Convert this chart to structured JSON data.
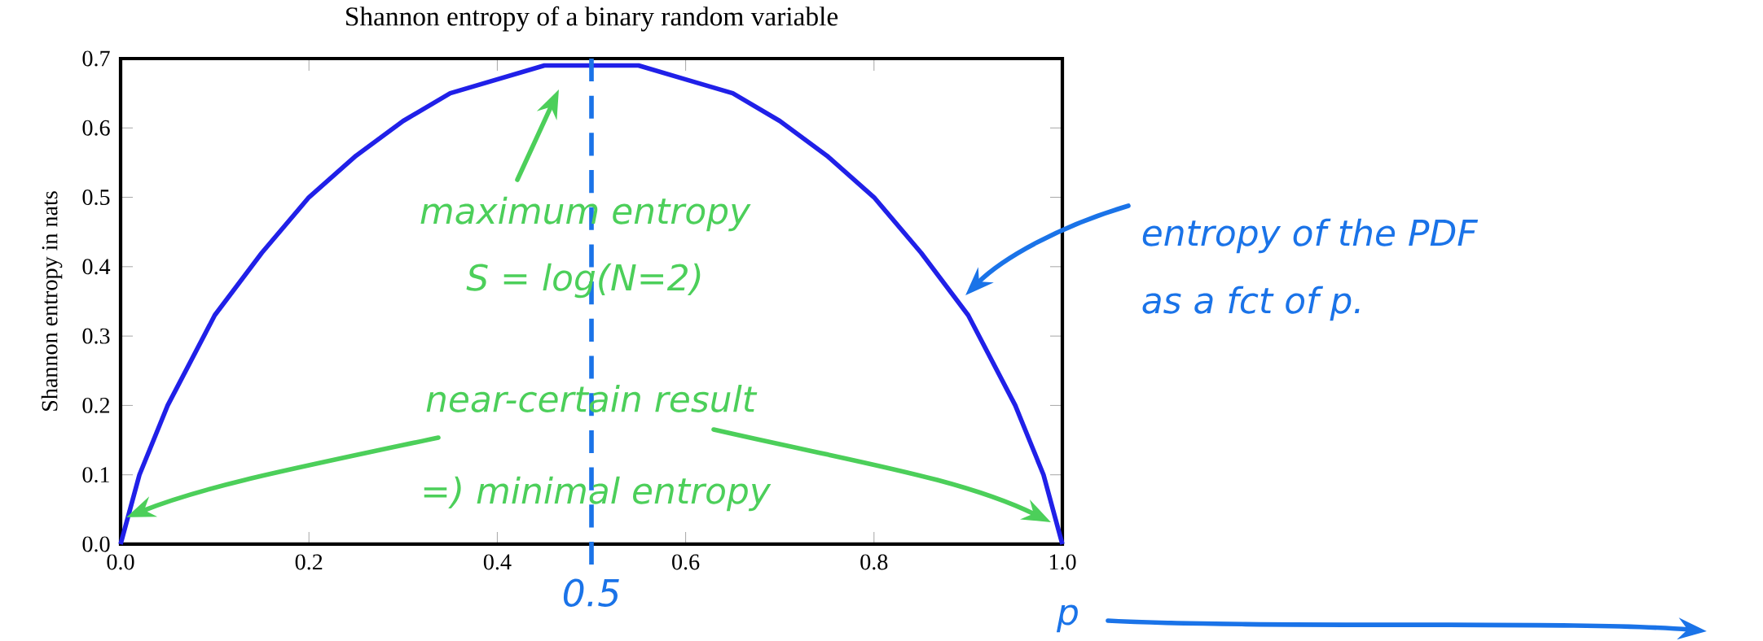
{
  "chart_data": {
    "type": "line",
    "title": "Shannon entropy of a binary random variable",
    "ylabel": "Shannon entropy in nats",
    "xlabel": "p",
    "x": [
      0,
      0.02,
      0.05,
      0.1,
      0.15,
      0.2,
      0.25,
      0.3,
      0.35,
      0.4,
      0.45,
      0.5,
      0.55,
      0.6,
      0.65,
      0.7,
      0.75,
      0.8,
      0.85,
      0.9,
      0.95,
      0.98,
      1
    ],
    "series": [
      {
        "color": "#2020e8",
        "values": [
          0,
          0.1,
          0.2,
          0.33,
          0.42,
          0.5,
          0.56,
          0.61,
          0.65,
          0.67,
          0.69,
          0.69,
          0.69,
          0.67,
          0.65,
          0.61,
          0.56,
          0.5,
          0.42,
          0.33,
          0.2,
          0.1,
          0
        ]
      }
    ],
    "xlim": [
      0,
      1
    ],
    "ylim": [
      0,
      0.7
    ],
    "xticks": [
      {
        "value": 0,
        "label": "0.0"
      },
      {
        "value": 0.2,
        "label": "0.2"
      },
      {
        "value": 0.4,
        "label": "0.4"
      },
      {
        "value": 0.6,
        "label": "0.6"
      },
      {
        "value": 0.8,
        "label": "0.8"
      },
      {
        "value": 1,
        "label": "1.0"
      }
    ],
    "yticks": [
      {
        "value": 0,
        "label": "0.0"
      },
      {
        "value": 0.1,
        "label": "0.1"
      },
      {
        "value": 0.2,
        "label": "0.2"
      },
      {
        "value": 0.3,
        "label": "0.3"
      },
      {
        "value": 0.4,
        "label": "0.4"
      },
      {
        "value": 0.5,
        "label": "0.5"
      },
      {
        "value": 0.6,
        "label": "0.6"
      },
      {
        "value": 0.7,
        "label": "0.7"
      }
    ],
    "ref_lines": [
      {
        "axis": "x",
        "value": 0.5,
        "label": "0.5",
        "color": "#1a73e8",
        "line_style": "dashed"
      }
    ],
    "annotations": [
      "maximum entropy",
      "S = log(N=2)",
      "near-certain result",
      "=) minimal entropy",
      "entropy of the PDF",
      "as a fct of p."
    ]
  }
}
